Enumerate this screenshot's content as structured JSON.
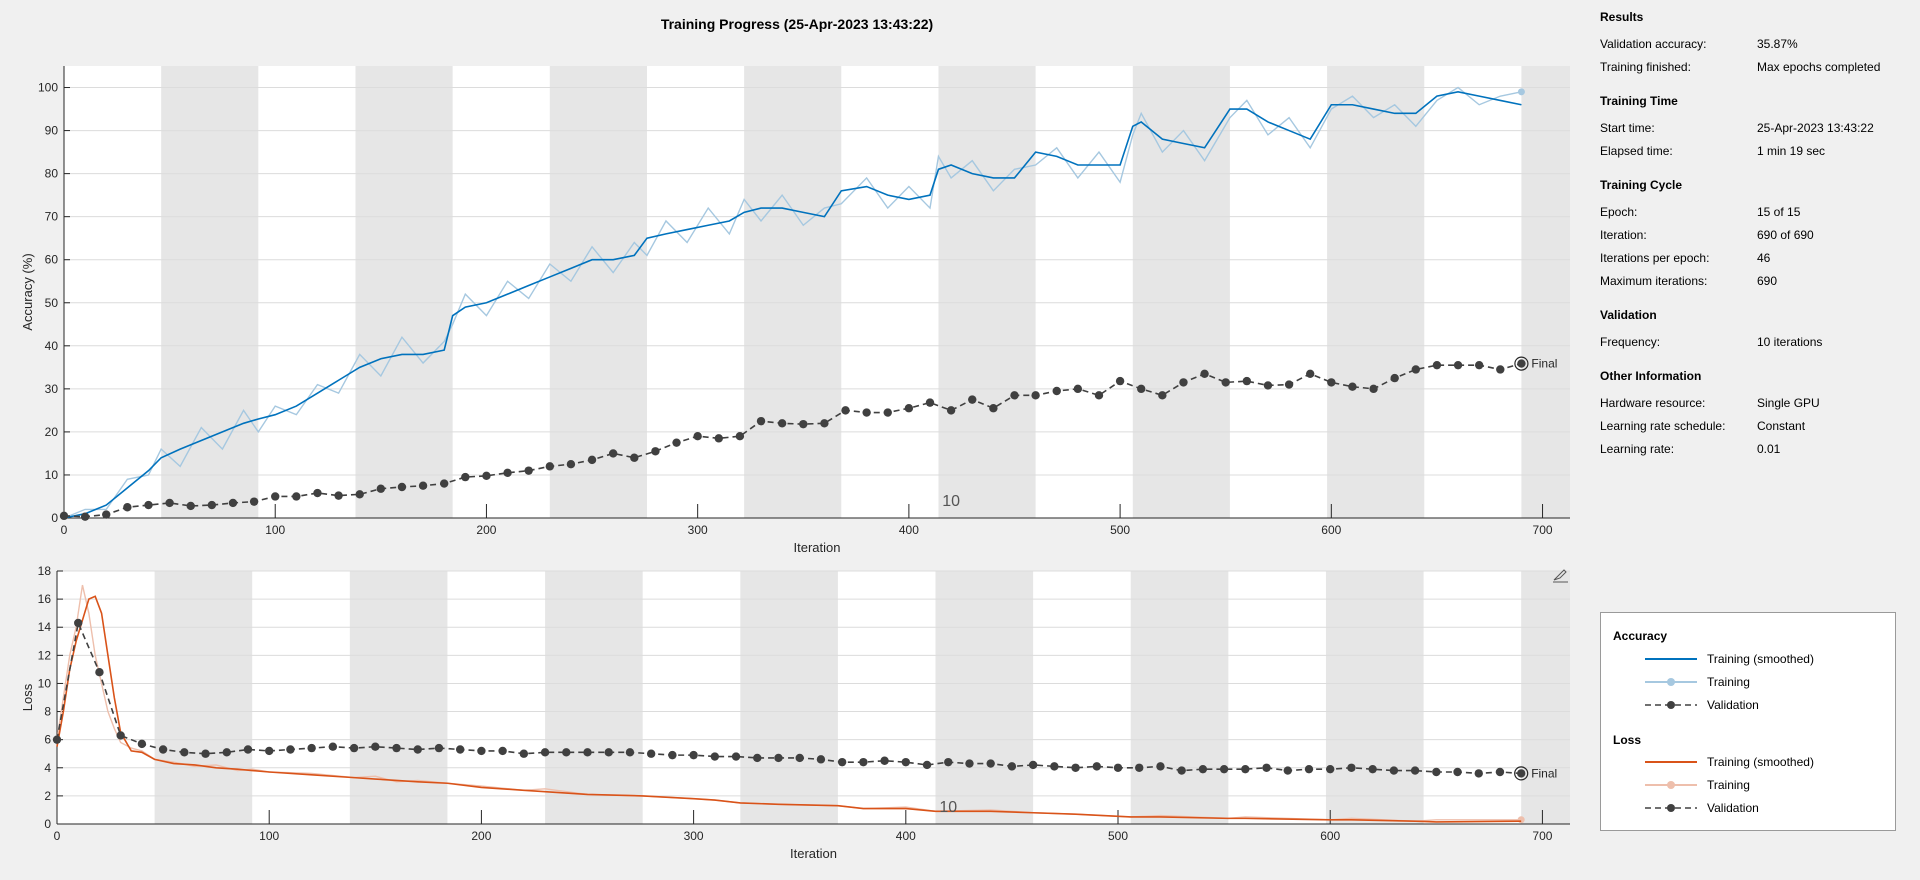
{
  "chart_data": [
    {
      "type": "line",
      "title": "Training Progress (25-Apr-2023 13:43:22)",
      "xlabel": "Iteration",
      "ylabel": "Accuracy (%)",
      "xlim": [
        0,
        713
      ],
      "ylim": [
        0,
        105
      ],
      "xticks": [
        0,
        100,
        200,
        300,
        400,
        500,
        600,
        700
      ],
      "yticks": [
        0,
        10,
        20,
        30,
        40,
        50,
        60,
        70,
        80,
        90,
        100
      ],
      "grid": "horizontal",
      "epoch_length": 46,
      "annotation": "10",
      "final_label": "Final",
      "series": [
        {
          "name": "Training (smoothed)",
          "color": "#0072bd",
          "x": [
            0,
            10,
            20,
            30,
            40,
            46,
            55,
            65,
            75,
            85,
            92,
            100,
            110,
            120,
            130,
            140,
            150,
            160,
            170,
            180,
            184,
            190,
            200,
            210,
            220,
            230,
            240,
            250,
            260,
            270,
            276,
            285,
            295,
            305,
            315,
            322,
            330,
            340,
            350,
            360,
            368,
            380,
            390,
            400,
            410,
            414,
            420,
            430,
            440,
            450,
            460,
            470,
            480,
            490,
            500,
            506,
            510,
            520,
            530,
            540,
            552,
            560,
            570,
            580,
            590,
            600,
            610,
            620,
            630,
            640,
            650,
            660,
            670,
            680,
            690
          ],
          "y": [
            0,
            1,
            3,
            7,
            11,
            14,
            16,
            18,
            20,
            22,
            23,
            24,
            26,
            29,
            32,
            35,
            37,
            38,
            38,
            39,
            47,
            49,
            50,
            52,
            54,
            56,
            58,
            60,
            60,
            61,
            65,
            66,
            67,
            68,
            69,
            71,
            72,
            72,
            71,
            70,
            76,
            77,
            75,
            74,
            75,
            81,
            82,
            80,
            79,
            79,
            85,
            84,
            82,
            82,
            82,
            91,
            92,
            88,
            87,
            86,
            95,
            95,
            92,
            90,
            88,
            96,
            96,
            95,
            94,
            94,
            98,
            99,
            98,
            97,
            96
          ]
        },
        {
          "name": "Training",
          "color": "#a6c8e0",
          "x": [
            0,
            10,
            20,
            30,
            40,
            46,
            55,
            65,
            75,
            85,
            92,
            100,
            110,
            120,
            130,
            140,
            150,
            160,
            170,
            180,
            184,
            190,
            200,
            210,
            220,
            230,
            240,
            250,
            260,
            270,
            276,
            285,
            295,
            305,
            315,
            322,
            330,
            340,
            350,
            360,
            368,
            380,
            390,
            400,
            410,
            414,
            420,
            430,
            440,
            450,
            460,
            470,
            480,
            490,
            500,
            506,
            510,
            520,
            530,
            540,
            552,
            560,
            570,
            580,
            590,
            600,
            610,
            620,
            630,
            640,
            650,
            660,
            670,
            680,
            690
          ],
          "y": [
            0,
            2,
            2,
            9,
            10,
            16,
            12,
            21,
            16,
            25,
            20,
            26,
            24,
            31,
            29,
            38,
            33,
            42,
            36,
            41,
            45,
            52,
            47,
            55,
            51,
            59,
            55,
            63,
            57,
            64,
            61,
            69,
            64,
            72,
            66,
            74,
            69,
            75,
            68,
            72,
            73,
            79,
            72,
            77,
            72,
            84,
            79,
            83,
            76,
            81,
            82,
            86,
            79,
            85,
            78,
            89,
            94,
            85,
            90,
            83,
            93,
            97,
            89,
            93,
            86,
            95,
            98,
            93,
            96,
            91,
            97,
            100,
            96,
            98,
            99
          ]
        },
        {
          "name": "Validation",
          "color": "#404040",
          "x": [
            0,
            10,
            20,
            30,
            40,
            50,
            60,
            70,
            80,
            90,
            100,
            110,
            120,
            130,
            140,
            150,
            160,
            170,
            180,
            190,
            200,
            210,
            220,
            230,
            240,
            250,
            260,
            270,
            280,
            290,
            300,
            310,
            320,
            330,
            340,
            350,
            360,
            370,
            380,
            390,
            400,
            410,
            420,
            430,
            440,
            450,
            460,
            470,
            480,
            490,
            500,
            510,
            520,
            530,
            540,
            550,
            560,
            570,
            580,
            590,
            600,
            610,
            620,
            630,
            640,
            650,
            660,
            670,
            680,
            690
          ],
          "y": [
            0.5,
            0.3,
            0.8,
            2.5,
            3,
            3.5,
            2.8,
            3,
            3.5,
            3.8,
            5,
            5,
            5.8,
            5.2,
            5.5,
            6.8,
            7.2,
            7.5,
            8,
            9.5,
            9.8,
            10.5,
            11,
            12,
            12.5,
            13.5,
            15,
            14,
            15.5,
            17.5,
            19,
            18.5,
            19,
            22.5,
            22,
            21.8,
            22,
            25,
            24.5,
            24.5,
            25.5,
            26.8,
            25,
            27.5,
            25.5,
            28.5,
            28.5,
            29.5,
            30,
            28.5,
            31.8,
            30,
            28.5,
            31.5,
            33.5,
            31.5,
            31.8,
            30.8,
            31,
            33.5,
            31.5,
            30.5,
            30,
            32.5,
            34.5,
            35.5,
            35.5,
            35.5,
            34.5,
            35.87
          ]
        }
      ]
    },
    {
      "type": "line",
      "xlabel": "Iteration",
      "ylabel": "Loss",
      "xlim": [
        0,
        713
      ],
      "ylim": [
        0,
        18
      ],
      "xticks": [
        0,
        100,
        200,
        300,
        400,
        500,
        600,
        700
      ],
      "yticks": [
        0,
        2,
        4,
        6,
        8,
        10,
        12,
        14,
        16,
        18
      ],
      "grid": "horizontal",
      "epoch_length": 46,
      "annotation": "10",
      "final_label": "Final",
      "series": [
        {
          "name": "Training (smoothed)",
          "color": "#d95319",
          "x": [
            0,
            3,
            6,
            9,
            12,
            15,
            18,
            21,
            24,
            27,
            30,
            35,
            40,
            46,
            55,
            65,
            75,
            85,
            92,
            100,
            120,
            140,
            150,
            160,
            170,
            184,
            200,
            220,
            230,
            250,
            276,
            300,
            310,
            322,
            340,
            368,
            380,
            400,
            414,
            440,
            460,
            480,
            506,
            520,
            552,
            560,
            600,
            610,
            640,
            650,
            690
          ],
          "y": [
            5.5,
            8,
            11,
            13,
            14.5,
            16,
            16.2,
            15,
            12,
            9,
            6.5,
            5.2,
            5.1,
            4.6,
            4.3,
            4.2,
            4,
            3.9,
            3.8,
            3.7,
            3.5,
            3.3,
            3.2,
            3.1,
            3,
            2.9,
            2.6,
            2.4,
            2.3,
            2.1,
            2,
            1.8,
            1.7,
            1.5,
            1.4,
            1.3,
            1.1,
            1.1,
            0.9,
            0.9,
            0.8,
            0.7,
            0.5,
            0.5,
            0.4,
            0.4,
            0.3,
            0.3,
            0.2,
            0.15,
            0.2
          ]
        },
        {
          "name": "Training",
          "color": "#eebfac",
          "x": [
            0,
            3,
            6,
            9,
            12,
            15,
            18,
            21,
            24,
            27,
            30,
            35,
            40,
            46,
            55,
            65,
            75,
            85,
            92,
            100,
            120,
            140,
            150,
            160,
            170,
            184,
            200,
            220,
            230,
            250,
            276,
            300,
            310,
            322,
            340,
            368,
            380,
            400,
            414,
            440,
            460,
            480,
            506,
            520,
            552,
            560,
            600,
            610,
            640,
            650,
            690
          ],
          "y": [
            6,
            9,
            12,
            14,
            17,
            15,
            12,
            10,
            8,
            6.8,
            5.8,
            5.4,
            5.2,
            4.6,
            4.4,
            4.1,
            4.2,
            3.8,
            3.9,
            3.7,
            3.6,
            3.3,
            3.4,
            3.0,
            3.1,
            2.9,
            2.7,
            2.4,
            2.5,
            2.1,
            2.0,
            1.8,
            1.7,
            1.5,
            1.4,
            1.3,
            1.1,
            1.2,
            0.9,
            1.0,
            0.8,
            0.7,
            0.5,
            0.6,
            0.4,
            0.5,
            0.3,
            0.4,
            0.2,
            0.3,
            0.3
          ]
        },
        {
          "name": "Validation",
          "color": "#404040",
          "x": [
            0,
            10,
            20,
            30,
            40,
            50,
            60,
            70,
            80,
            90,
            100,
            110,
            120,
            130,
            140,
            150,
            160,
            170,
            180,
            190,
            200,
            210,
            220,
            230,
            240,
            250,
            260,
            270,
            280,
            290,
            300,
            310,
            320,
            330,
            340,
            350,
            360,
            370,
            380,
            390,
            400,
            410,
            420,
            430,
            440,
            450,
            460,
            470,
            480,
            490,
            500,
            510,
            520,
            530,
            540,
            550,
            560,
            570,
            580,
            590,
            600,
            610,
            620,
            630,
            640,
            650,
            660,
            670,
            680,
            690
          ],
          "y": [
            6,
            14.3,
            10.8,
            6.3,
            5.7,
            5.3,
            5.1,
            5,
            5.1,
            5.3,
            5.2,
            5.3,
            5.4,
            5.5,
            5.4,
            5.5,
            5.4,
            5.3,
            5.4,
            5.3,
            5.2,
            5.2,
            5,
            5.1,
            5.1,
            5.1,
            5.1,
            5.1,
            5,
            4.9,
            4.9,
            4.8,
            4.8,
            4.7,
            4.7,
            4.7,
            4.6,
            4.4,
            4.4,
            4.5,
            4.4,
            4.2,
            4.4,
            4.3,
            4.3,
            4.1,
            4.2,
            4.1,
            4,
            4.1,
            4,
            4,
            4.1,
            3.8,
            3.9,
            3.9,
            3.9,
            4,
            3.8,
            3.9,
            3.9,
            4,
            3.9,
            3.8,
            3.8,
            3.7,
            3.7,
            3.6,
            3.7,
            3.6
          ]
        }
      ]
    }
  ],
  "results": {
    "title": "Results",
    "rows": [
      {
        "k": "Validation accuracy:",
        "v": "35.87%"
      },
      {
        "k": "Training finished:",
        "v": "Max epochs completed"
      }
    ]
  },
  "training_time": {
    "title": "Training Time",
    "rows": [
      {
        "k": "Start time:",
        "v": "25-Apr-2023 13:43:22"
      },
      {
        "k": "Elapsed time:",
        "v": "1 min 19 sec"
      }
    ]
  },
  "training_cycle": {
    "title": "Training Cycle",
    "rows": [
      {
        "k": "Epoch:",
        "v": "15 of 15"
      },
      {
        "k": "Iteration:",
        "v": "690 of 690"
      },
      {
        "k": "Iterations per epoch:",
        "v": "46"
      },
      {
        "k": "Maximum iterations:",
        "v": "690"
      }
    ]
  },
  "validation": {
    "title": "Validation",
    "rows": [
      {
        "k": "Frequency:",
        "v": "10 iterations"
      }
    ]
  },
  "other_info": {
    "title": "Other Information",
    "rows": [
      {
        "k": "Hardware resource:",
        "v": "Single GPU"
      },
      {
        "k": "Learning rate schedule:",
        "v": "Constant"
      },
      {
        "k": "Learning rate:",
        "v": "0.01"
      }
    ]
  },
  "legend": {
    "accuracy_title": "Accuracy",
    "loss_title": "Loss",
    "acc_smoothed": "Training (smoothed)",
    "acc_training": "Training",
    "acc_validation": "Validation",
    "loss_smoothed": "Training (smoothed)",
    "loss_training": "Training",
    "loss_validation": "Validation",
    "colors": {
      "acc_smoothed": "#0072bd",
      "acc_training": "#a6c8e0",
      "loss_smoothed": "#d95319",
      "loss_training": "#eebfac",
      "validation": "#404040"
    }
  },
  "icons": {
    "axes_toolbar": "brush-icon"
  }
}
